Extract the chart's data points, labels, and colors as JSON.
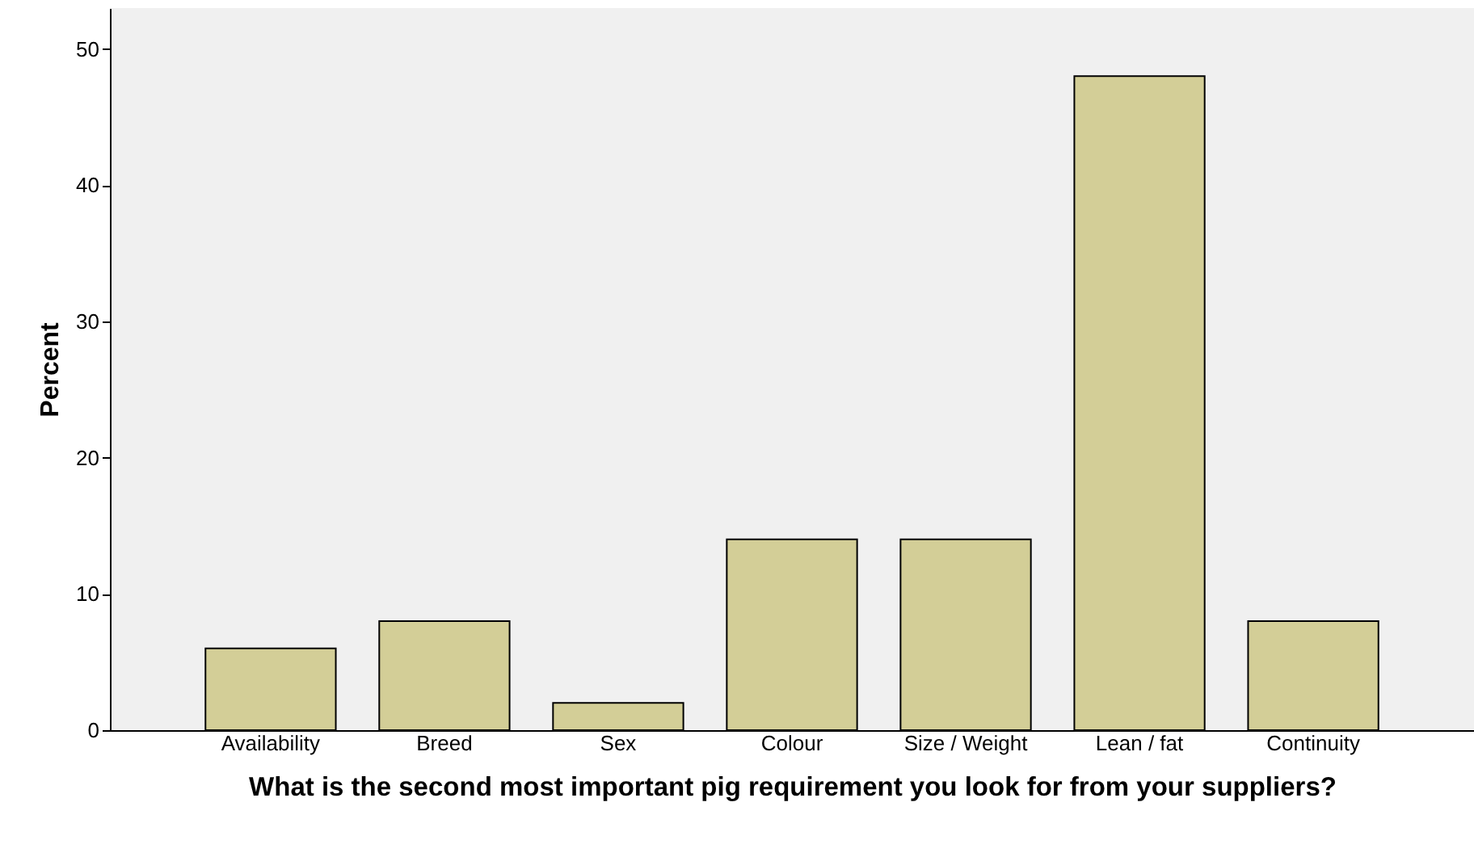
{
  "chart_data": {
    "type": "bar",
    "xlabel": "What is the second most important pig requirement you look for from your suppliers?",
    "ylabel": "Percent",
    "categories": [
      "Availability",
      "Breed",
      "Sex",
      "Colour",
      "Size / Weight",
      "Lean / fat",
      "Continuity"
    ],
    "values": [
      6,
      8,
      2,
      14,
      14,
      48,
      8
    ],
    "color": "#d3ce97",
    "ylim": [
      0,
      53
    ],
    "yticks": [
      0,
      10,
      20,
      30,
      40,
      50
    ],
    "grid": false
  }
}
